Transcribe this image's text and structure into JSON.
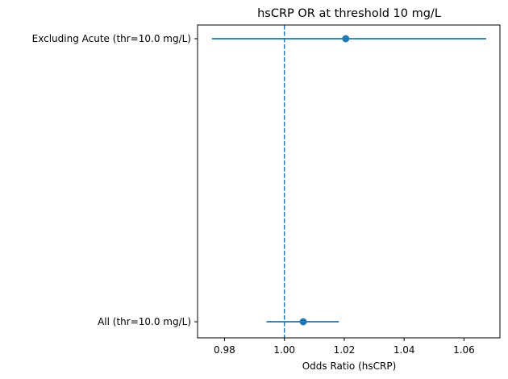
{
  "chart_data": {
    "type": "scatter",
    "subtype": "forest-plot",
    "title": "hsCRP OR at threshold 10 mg/L",
    "xlabel": "Odds Ratio (hsCRP)",
    "ylabel": "",
    "xlim": [
      0.971,
      1.072
    ],
    "x_ticks": [
      0.98,
      1.0,
      1.02,
      1.04,
      1.06
    ],
    "x_tick_labels": [
      "0.98",
      "1.00",
      "1.02",
      "1.04",
      "1.06"
    ],
    "reference_line": {
      "x": 1.0,
      "style": "dashed"
    },
    "grid": false,
    "legend": "none",
    "color": "#1f77b4",
    "series": [
      {
        "categories": [
          "Excluding Acute (thr=10.0 mg/L)",
          "All (thr=10.0 mg/L)"
        ],
        "or": [
          1.0205,
          1.0063
        ],
        "ci_low": [
          0.9758,
          0.994
        ],
        "ci_high": [
          1.0674,
          1.0182
        ]
      }
    ]
  }
}
